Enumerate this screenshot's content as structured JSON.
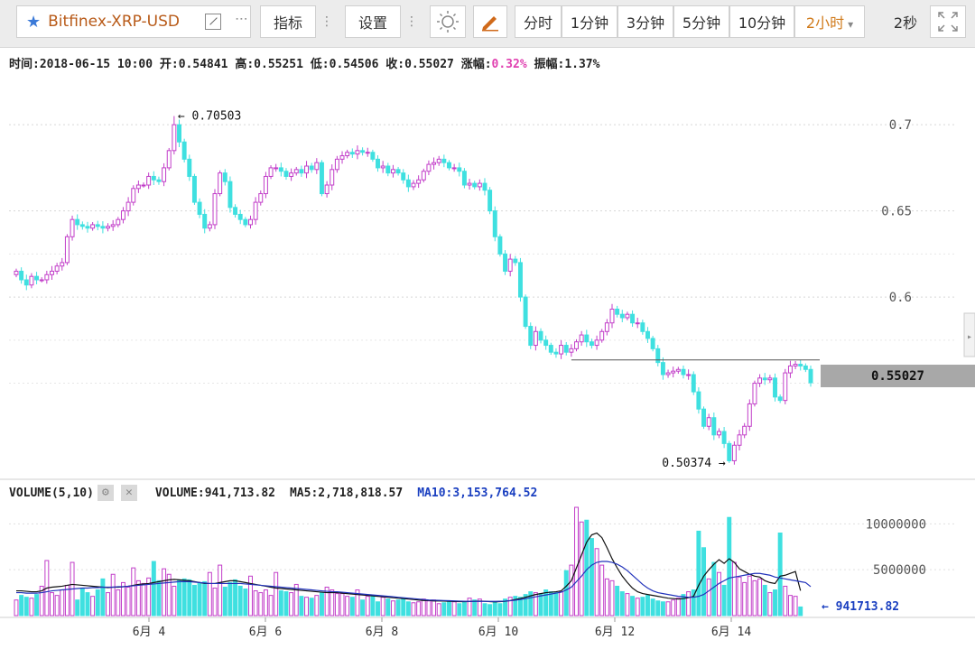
{
  "toolbar": {
    "symbol": "Bitfinex-XRP-USD",
    "indicators_label": "指标",
    "settings_label": "设置",
    "timeframes": [
      "分时",
      "1分钟",
      "3分钟",
      "5分钟",
      "10分钟"
    ],
    "active_timeframe": "2小时",
    "refresh_label": "2秒"
  },
  "info": {
    "time_label": "时间:",
    "time": "2018-06-15 10:00",
    "open_label": "开:",
    "open": "0.54841",
    "high_label": "高:",
    "high": "0.55251",
    "low_label": "低:",
    "low": "0.54506",
    "close_label": "收:",
    "close": "0.55027",
    "change_label": "涨幅:",
    "change": "0.32%",
    "amplitude_label": "振幅:",
    "amplitude": "1.37%"
  },
  "volume_info": {
    "title": "VOLUME(5,10)",
    "volume": "VOLUME:941,713.82",
    "ma5": "MA5:2,718,818.57",
    "ma10": "MA10:3,153,764.52"
  },
  "colors": {
    "up": "#c23ec9",
    "down": "#3fe0e0",
    "ma5": "#111111",
    "ma10": "#2233bb"
  },
  "chart_data": [
    {
      "type": "candlestick",
      "ylim": [
        0.5,
        0.72
      ],
      "y_ticks": [
        "0.7",
        "0.65",
        "0.6"
      ],
      "x_tick_labels": [
        "6月 4",
        "6月 6",
        "6月 8",
        "6月 10",
        "6月 12",
        "6月 14"
      ],
      "annotations": {
        "max": "0.70503",
        "min": "0.50374"
      },
      "current_price_label": "0.55027",
      "current_price": 0.55027,
      "ref_line": 0.5635,
      "closes": [
        0.615,
        0.61,
        0.607,
        0.612,
        0.61,
        0.61,
        0.613,
        0.615,
        0.618,
        0.62,
        0.635,
        0.645,
        0.642,
        0.641,
        0.64,
        0.642,
        0.641,
        0.64,
        0.641,
        0.642,
        0.645,
        0.65,
        0.655,
        0.663,
        0.665,
        0.665,
        0.67,
        0.668,
        0.667,
        0.675,
        0.685,
        0.7,
        0.69,
        0.68,
        0.67,
        0.655,
        0.648,
        0.64,
        0.642,
        0.66,
        0.672,
        0.667,
        0.652,
        0.648,
        0.645,
        0.642,
        0.645,
        0.655,
        0.66,
        0.67,
        0.675,
        0.675,
        0.673,
        0.67,
        0.672,
        0.674,
        0.672,
        0.676,
        0.674,
        0.678,
        0.66,
        0.665,
        0.674,
        0.68,
        0.682,
        0.684,
        0.683,
        0.685,
        0.684,
        0.684,
        0.68,
        0.675,
        0.676,
        0.672,
        0.674,
        0.672,
        0.668,
        0.664,
        0.666,
        0.668,
        0.673,
        0.677,
        0.678,
        0.68,
        0.678,
        0.675,
        0.675,
        0.673,
        0.665,
        0.666,
        0.664,
        0.666,
        0.662,
        0.65,
        0.635,
        0.625,
        0.615,
        0.622,
        0.62,
        0.6,
        0.583,
        0.572,
        0.58,
        0.575,
        0.572,
        0.568,
        0.567,
        0.572,
        0.568,
        0.57,
        0.574,
        0.578,
        0.574,
        0.572,
        0.575,
        0.58,
        0.585,
        0.593,
        0.59,
        0.588,
        0.59,
        0.585,
        0.585,
        0.58,
        0.576,
        0.57,
        0.562,
        0.555,
        0.556,
        0.557,
        0.558,
        0.555,
        0.555,
        0.545,
        0.535,
        0.525,
        0.53,
        0.52,
        0.522,
        0.515,
        0.505,
        0.514,
        0.52,
        0.525,
        0.538,
        0.55,
        0.553,
        0.552,
        0.553,
        0.542,
        0.54,
        0.556,
        0.56,
        0.561,
        0.56,
        0.558,
        0.55027
      ],
      "volumes": [
        1700000,
        2200000,
        2000000,
        1900000,
        2300000,
        3200000,
        6000000,
        2500000,
        2200000,
        2800000,
        3300000,
        5800000,
        1700000,
        3000000,
        2500000,
        2100000,
        2800000,
        4000000,
        2500000,
        4500000,
        2800000,
        3600000,
        3100000,
        5200000,
        3800000,
        3500000,
        4100000,
        5900000,
        3800000,
        5100000,
        4500000,
        3200000,
        3900000,
        4000000,
        3900000,
        3300000,
        3600000,
        3700000,
        4700000,
        3000000,
        5500000,
        3100000,
        3600000,
        3900000,
        3200000,
        2900000,
        4300000,
        2700000,
        2500000,
        2800000,
        2200000,
        4700000,
        2700000,
        2600000,
        2500000,
        3400000,
        2100000,
        2000000,
        1900000,
        2200000,
        2500000,
        3100000,
        2800000,
        2400000,
        2400000,
        2100000,
        2000000,
        2800000,
        1700000,
        2100000,
        2200000,
        1500000,
        2000000,
        1800000,
        1600000,
        1700000,
        1900000,
        1500000,
        1400000,
        1500000,
        1800000,
        1600000,
        1700000,
        1300000,
        1400000,
        1600000,
        1500000,
        1300000,
        1500000,
        1900000,
        1700000,
        1800000,
        1300000,
        1200000,
        1500000,
        1300000,
        1800000,
        2000000,
        2100000,
        2000000,
        2300000,
        2600000,
        2500000,
        2400000,
        2800000,
        2600000,
        2500000,
        2600000,
        4900000,
        5500000,
        11800000,
        10200000,
        10400000,
        8400000,
        7300000,
        5500000,
        4000000,
        3800000,
        3200000,
        2600000,
        2400000,
        2100000,
        1900000,
        2000000,
        2200000,
        1800000,
        1600000,
        1500000,
        1500000,
        1700000,
        1900000,
        2300000,
        2600000,
        2800000,
        9200000,
        7400000,
        4000000,
        5800000,
        4700000,
        3300000,
        10700000,
        5800000,
        4200000,
        3600000,
        4300000,
        3800000,
        4000000,
        3300000,
        2500000,
        2800000,
        9000000,
        3200000,
        2200000,
        2100000,
        941713.82
      ],
      "ma5": [
        2700000,
        2700000,
        2650000,
        2600000,
        2600000,
        2700000,
        3000000,
        3100000,
        3150000,
        3200000,
        3300000,
        3400000,
        3350000,
        3300000,
        3250000,
        3200000,
        3150000,
        3100000,
        3050000,
        3100000,
        3100000,
        3150000,
        3200000,
        3300000,
        3400000,
        3450000,
        3500000,
        3600000,
        3700000,
        3800000,
        3900000,
        3950000,
        3900000,
        3850000,
        3800000,
        3700000,
        3600000,
        3500000,
        3500000,
        3500000,
        3600000,
        3700000,
        3800000,
        3800000,
        3700000,
        3600000,
        3500000,
        3400000,
        3300000,
        3200000,
        3100000,
        3000000,
        2950000,
        2900000,
        2850000,
        2800000,
        2750000,
        2700000,
        2650000,
        2600000,
        2550000,
        2500000,
        2500000,
        2500000,
        2450000,
        2400000,
        2350000,
        2300000,
        2250000,
        2200000,
        2150000,
        2100000,
        2050000,
        2000000,
        1950000,
        1900000,
        1850000,
        1800000,
        1750000,
        1700000,
        1650000,
        1650000,
        1600000,
        1600000,
        1580000,
        1560000,
        1540000,
        1520000,
        1520000,
        1540000,
        1560000,
        1580000,
        1560000,
        1520000,
        1500000,
        1520000,
        1560000,
        1640000,
        1750000,
        1860000,
        2000000,
        2150000,
        2300000,
        2400000,
        2500000,
        2550000,
        2600000,
        2700000,
        3200000,
        3800000,
        5200000,
        6600000,
        8000000,
        8800000,
        9000000,
        8500000,
        7400000,
        6200000,
        5200000,
        4300000,
        3600000,
        3000000,
        2600000,
        2400000,
        2300000,
        2200000,
        2100000,
        2000000,
        1900000,
        1850000,
        1800000,
        1850000,
        1950000,
        2100000,
        3300000,
        4300000,
        5000000,
        5600000,
        6100000,
        5700000,
        6200000,
        5800000,
        5100000,
        4800000,
        4500000,
        4300000,
        4200000,
        3800000,
        3600000,
        3500000,
        4300000,
        4400000,
        4600000,
        4800000,
        2718818.57
      ],
      "ma10": [
        2500000,
        2500000,
        2450000,
        2450000,
        2450000,
        2500000,
        2600000,
        2700000,
        2750000,
        2800000,
        2850000,
        2900000,
        2950000,
        3000000,
        3000000,
        3050000,
        3050000,
        3100000,
        3100000,
        3100000,
        3150000,
        3150000,
        3200000,
        3250000,
        3300000,
        3350000,
        3400000,
        3450000,
        3500000,
        3550000,
        3600000,
        3650000,
        3700000,
        3700000,
        3700000,
        3650000,
        3600000,
        3550000,
        3500000,
        3500000,
        3500000,
        3500000,
        3500000,
        3500000,
        3500000,
        3450000,
        3400000,
        3350000,
        3300000,
        3250000,
        3200000,
        3150000,
        3100000,
        3050000,
        3000000,
        2950000,
        2900000,
        2850000,
        2800000,
        2750000,
        2700000,
        2650000,
        2600000,
        2600000,
        2550000,
        2500000,
        2450000,
        2400000,
        2350000,
        2300000,
        2250000,
        2200000,
        2150000,
        2100000,
        2050000,
        2000000,
        1950000,
        1900000,
        1850000,
        1800000,
        1750000,
        1700000,
        1680000,
        1660000,
        1640000,
        1620000,
        1600000,
        1580000,
        1560000,
        1550000,
        1550000,
        1550000,
        1550000,
        1550000,
        1550000,
        1560000,
        1580000,
        1620000,
        1680000,
        1750000,
        1850000,
        1950000,
        2050000,
        2150000,
        2250000,
        2350000,
        2450000,
        2550000,
        2800000,
        3100000,
        3700000,
        4300000,
        5000000,
        5500000,
        5800000,
        5900000,
        5900000,
        5800000,
        5600000,
        5300000,
        4900000,
        4400000,
        3900000,
        3400000,
        3000000,
        2700000,
        2500000,
        2400000,
        2300000,
        2200000,
        2100000,
        2050000,
        2000000,
        2000000,
        2100000,
        2300000,
        2700000,
        3100000,
        3500000,
        3800000,
        4100000,
        4200000,
        4300000,
        4400000,
        4500000,
        4600000,
        4600000,
        4500000,
        4400000,
        4200000,
        4100000,
        4000000,
        3900000,
        3800000,
        3700000,
        3600000,
        3153764.52
      ],
      "vol_ylim": [
        0,
        12000000
      ],
      "vol_ticks": [
        "10000000",
        "5000000"
      ],
      "last_volume_label": "941713.82"
    }
  ]
}
